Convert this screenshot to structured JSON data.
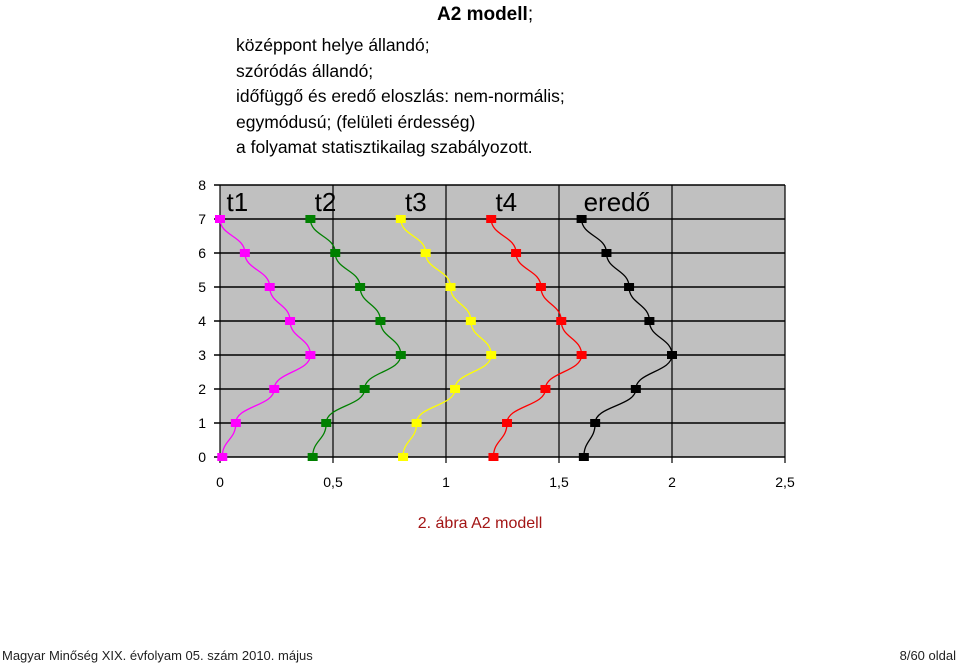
{
  "header": {
    "title": "A2 modell",
    "title_suffix": ";",
    "lines": [
      "középpont helye állandó;",
      "szóródás állandó;",
      "időfüggő és eredő eloszlás: nem-normális;",
      "egymódusú; (felületi érdesség)",
      "a folyamat statisztikailag szabályozott."
    ]
  },
  "caption": "2. ábra A2 modell",
  "footer": {
    "left": "Magyar Minőség XIX. évfolyam 05. szám 2010. május",
    "right": "8/60 oldal"
  },
  "chart_data": {
    "type": "line",
    "xlim": [
      0,
      2.5
    ],
    "ylim": [
      0,
      8
    ],
    "x_ticks": [
      "0",
      "0,5",
      "1",
      "1,5",
      "2",
      "2,5"
    ],
    "y_ticks": [
      "0",
      "1",
      "2",
      "3",
      "4",
      "5",
      "6",
      "7",
      "8"
    ],
    "grid": true,
    "background": "#c0c0c0",
    "series": [
      {
        "name": "t1",
        "color": "#ff00ff",
        "points": [
          [
            0.0,
            7
          ],
          [
            0.11,
            6
          ],
          [
            0.22,
            5
          ],
          [
            0.31,
            4
          ],
          [
            0.4,
            3
          ],
          [
            0.24,
            2
          ],
          [
            0.07,
            1
          ],
          [
            0.01,
            0
          ]
        ]
      },
      {
        "name": "t2",
        "color": "#008000",
        "points": [
          [
            0.4,
            7
          ],
          [
            0.51,
            6
          ],
          [
            0.62,
            5
          ],
          [
            0.71,
            4
          ],
          [
            0.8,
            3
          ],
          [
            0.64,
            2
          ],
          [
            0.47,
            1
          ],
          [
            0.41,
            0
          ]
        ]
      },
      {
        "name": "t3",
        "color": "#ffff00",
        "points": [
          [
            0.8,
            7
          ],
          [
            0.91,
            6
          ],
          [
            1.02,
            5
          ],
          [
            1.11,
            4
          ],
          [
            1.2,
            3
          ],
          [
            1.04,
            2
          ],
          [
            0.87,
            1
          ],
          [
            0.81,
            0
          ]
        ]
      },
      {
        "name": "t4",
        "color": "#ff0000",
        "points": [
          [
            1.2,
            7
          ],
          [
            1.31,
            6
          ],
          [
            1.42,
            5
          ],
          [
            1.51,
            4
          ],
          [
            1.6,
            3
          ],
          [
            1.44,
            2
          ],
          [
            1.27,
            1
          ],
          [
            1.21,
            0
          ]
        ]
      },
      {
        "name": "eredő",
        "color": "#000000",
        "points": [
          [
            1.6,
            7
          ],
          [
            1.71,
            6
          ],
          [
            1.81,
            5
          ],
          [
            1.9,
            4
          ],
          [
            2.0,
            3
          ],
          [
            1.84,
            2
          ],
          [
            1.66,
            1
          ],
          [
            1.61,
            0
          ]
        ]
      }
    ]
  }
}
